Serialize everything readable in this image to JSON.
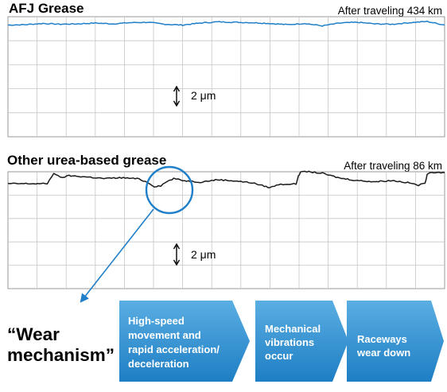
{
  "chart_data": [
    {
      "type": "line",
      "title": "AFJ Grease",
      "annotation": "After traveling 434 km",
      "scale_bar_label": "2 μm",
      "grid": true,
      "series": [
        {
          "color": "#1f7fc8",
          "x": [
            0,
            4,
            8,
            12,
            16,
            20,
            24,
            28,
            32,
            36,
            40,
            44,
            48,
            52,
            56,
            60,
            64,
            68,
            72,
            76,
            80,
            84,
            88,
            92,
            96,
            100
          ],
          "y": [
            -0.05,
            0.0,
            0.15,
            0.05,
            0.1,
            0.2,
            0.1,
            0.25,
            0.3,
            0.05,
            -0.05,
            0.2,
            0.35,
            0.3,
            0.25,
            0.15,
            0.0,
            0.15,
            -0.15,
            0.2,
            0.3,
            0.1,
            0.05,
            0.25,
            0.4,
            -0.05
          ]
        }
      ]
    },
    {
      "type": "line",
      "title": "Other urea-based grease",
      "annotation": "After traveling 86 km",
      "scale_bar_label": "2 μm",
      "grid": true,
      "series": [
        {
          "color": "#1a1a1a",
          "x": [
            0,
            5,
            9,
            10.5,
            12,
            14,
            18,
            22,
            26,
            30,
            32,
            33.5,
            35,
            36.5,
            38,
            40,
            44,
            48,
            52,
            56,
            60,
            62,
            64,
            66,
            66.5,
            67,
            68,
            72,
            76,
            80,
            84,
            88,
            92,
            94,
            95.5,
            96,
            97,
            100
          ],
          "y": [
            0.1,
            0.1,
            0.1,
            1.45,
            0.85,
            1.1,
            0.95,
            0.75,
            0.85,
            0.7,
            0.25,
            -0.25,
            -0.15,
            0.4,
            0.75,
            0.5,
            0.3,
            0.6,
            0.45,
            0.2,
            -0.4,
            0.0,
            0.05,
            0.05,
            1.1,
            1.5,
            1.65,
            1.4,
            0.8,
            0.5,
            0.35,
            0.5,
            0.2,
            -0.1,
            0.15,
            1.2,
            1.55,
            1.5
          ]
        }
      ]
    }
  ],
  "wear_label": "“Wear mechanism”",
  "steps": [
    {
      "lines": [
        "High-speed",
        "movement and",
        "rapid acceleration/",
        "deceleration"
      ]
    },
    {
      "lines": [
        "Mechanical",
        "vibrations",
        "occur"
      ]
    },
    {
      "lines": [
        "Raceways",
        "wear down"
      ]
    }
  ],
  "colors": {
    "accent_blue": "#1f7fc8",
    "arrow_gradient_light": "#5aaee2",
    "arrow_gradient_dark": "#1e7ec4",
    "grid": "#c6c6c6",
    "frame": "#999999"
  },
  "icons": {
    "scale_bar": "double-headed-vertical-arrow-icon",
    "wear_circle": "highlight-circle-icon",
    "pointer": "pointer-arrow-icon"
  }
}
